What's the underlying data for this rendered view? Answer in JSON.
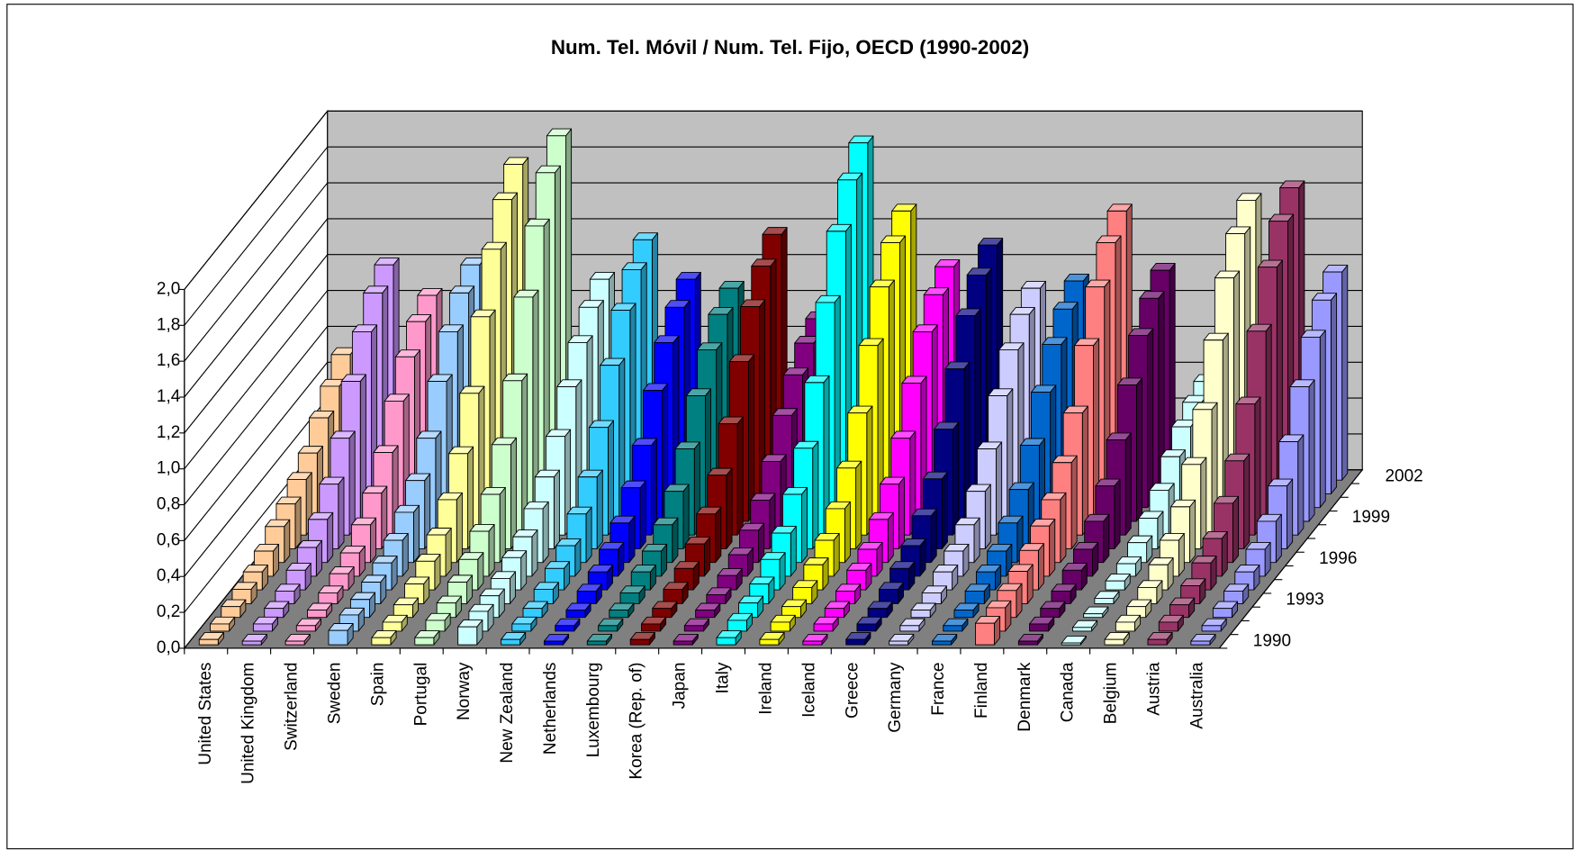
{
  "chart_data": {
    "type": "bar3d",
    "title": "Num. Tel. Móvil / Num. Tel. Fijo, OECD (1990-2002)",
    "ylim": [
      0,
      2
    ],
    "yticks": [
      {
        "value": 0,
        "label": "0,0"
      },
      {
        "value": 0.2,
        "label": "0,2"
      },
      {
        "value": 0.4,
        "label": "0,4"
      },
      {
        "value": 0.6,
        "label": "0,6"
      },
      {
        "value": 0.8,
        "label": "0,8"
      },
      {
        "value": 1,
        "label": "1,0"
      },
      {
        "value": 1.2,
        "label": "1,2"
      },
      {
        "value": 1.4,
        "label": "1,4"
      },
      {
        "value": 1.6,
        "label": "1,6"
      },
      {
        "value": 1.8,
        "label": "1,8"
      },
      {
        "value": 2,
        "label": "2,0"
      }
    ],
    "depth_categories": [
      "1990",
      null,
      null,
      "1993",
      null,
      null,
      "1996",
      null,
      null,
      "1999",
      null,
      null,
      "2002"
    ],
    "grid": true,
    "series": [
      {
        "name": "United States",
        "color": "#ffcc99",
        "values": [
          0.03,
          0.04,
          0.06,
          0.08,
          0.1,
          0.14,
          0.2,
          0.25,
          0.31,
          0.38,
          0.5,
          0.6,
          0.7
        ]
      },
      {
        "name": "United Kingdom",
        "color": "#cc99ff",
        "values": [
          0.02,
          0.04,
          0.05,
          0.07,
          0.11,
          0.16,
          0.24,
          0.36,
          0.54,
          0.78,
          0.98,
          1.12,
          1.2
        ]
      },
      {
        "name": "Switzerland",
        "color": "#ff99cc",
        "values": [
          0.02,
          0.03,
          0.04,
          0.06,
          0.09,
          0.13,
          0.21,
          0.31,
          0.46,
          0.67,
          0.84,
          0.96,
          1.03
        ]
      },
      {
        "name": "Sweden",
        "color": "#99ccff",
        "values": [
          0.08,
          0.09,
          0.1,
          0.12,
          0.15,
          0.2,
          0.28,
          0.38,
          0.54,
          0.78,
          0.98,
          1.12,
          1.2
        ]
      },
      {
        "name": "Spain",
        "color": "#ffff99",
        "values": [
          0.04,
          0.05,
          0.07,
          0.11,
          0.16,
          0.23,
          0.35,
          0.53,
          0.79,
          1.14,
          1.44,
          1.64,
          1.76
        ]
      },
      {
        "name": "Portugal",
        "color": "#ccffcc",
        "values": [
          0.04,
          0.06,
          0.08,
          0.12,
          0.17,
          0.25,
          0.38,
          0.58,
          0.86,
          1.25,
          1.57,
          1.79,
          1.92
        ]
      },
      {
        "name": "Norway",
        "color": "#ccffff",
        "values": [
          0.1,
          0.11,
          0.12,
          0.14,
          0.18,
          0.22,
          0.3,
          0.4,
          0.55,
          0.75,
          0.92,
          1.04,
          1.12
        ]
      },
      {
        "name": "New Zealand",
        "color": "#33ccff",
        "values": [
          0.03,
          0.04,
          0.05,
          0.08,
          0.12,
          0.17,
          0.27,
          0.4,
          0.6,
          0.87,
          1.1,
          1.25,
          1.34
        ]
      },
      {
        "name": "Netherlands",
        "color": "#0000ff",
        "values": [
          0.02,
          0.03,
          0.04,
          0.07,
          0.1,
          0.15,
          0.22,
          0.34,
          0.5,
          0.73,
          0.92,
          1.04,
          1.12
        ]
      },
      {
        "name": "Luxembourg",
        "color": "#008080",
        "values": [
          0.02,
          0.03,
          0.04,
          0.06,
          0.1,
          0.14,
          0.21,
          0.32,
          0.48,
          0.7,
          0.88,
          1.0,
          1.07
        ]
      },
      {
        "name": "Korea (Rep. of)",
        "color": "#800000",
        "values": [
          0.03,
          0.04,
          0.05,
          0.08,
          0.12,
          0.18,
          0.27,
          0.41,
          0.62,
          0.89,
          1.12,
          1.27,
          1.37
        ]
      },
      {
        "name": "Japan",
        "color": "#800080",
        "values": [
          0.02,
          0.03,
          0.04,
          0.05,
          0.08,
          0.12,
          0.18,
          0.27,
          0.41,
          0.59,
          0.74,
          0.84,
          0.9
        ]
      },
      {
        "name": "Italy",
        "color": "#00ffff",
        "values": [
          0.04,
          0.06,
          0.08,
          0.11,
          0.17,
          0.24,
          0.38,
          0.56,
          0.85,
          1.22,
          1.54,
          1.75,
          1.88
        ]
      },
      {
        "name": "Ireland",
        "color": "#ffff00",
        "values": [
          0.03,
          0.05,
          0.06,
          0.09,
          0.14,
          0.2,
          0.3,
          0.45,
          0.68,
          0.98,
          1.23,
          1.4,
          1.5
        ]
      },
      {
        "name": "Iceland",
        "color": "#ff00ff",
        "values": [
          0.02,
          0.04,
          0.05,
          0.07,
          0.11,
          0.15,
          0.24,
          0.36,
          0.54,
          0.77,
          0.98,
          1.11,
          1.19
        ]
      },
      {
        "name": "Greece",
        "color": "#000080",
        "values": [
          0.03,
          0.04,
          0.05,
          0.08,
          0.12,
          0.17,
          0.26,
          0.39,
          0.59,
          0.85,
          1.07,
          1.22,
          1.31
        ]
      },
      {
        "name": "Germany",
        "color": "#ccccff",
        "values": [
          0.02,
          0.03,
          0.04,
          0.06,
          0.1,
          0.14,
          0.21,
          0.32,
          0.48,
          0.7,
          0.88,
          1.0,
          1.07
        ]
      },
      {
        "name": "France",
        "color": "#0066cc",
        "values": [
          0.02,
          0.03,
          0.04,
          0.07,
          0.1,
          0.14,
          0.22,
          0.33,
          0.5,
          0.72,
          0.91,
          1.03,
          1.11
        ]
      },
      {
        "name": "Finland",
        "color": "#ff8080",
        "values": [
          0.12,
          0.13,
          0.15,
          0.18,
          0.22,
          0.28,
          0.35,
          0.48,
          0.68,
          0.98,
          1.23,
          1.4,
          1.5
        ]
      },
      {
        "name": "Denmark",
        "color": "#660066",
        "values": [
          0.02,
          0.04,
          0.05,
          0.07,
          0.11,
          0.15,
          0.23,
          0.35,
          0.53,
          0.76,
          0.96,
          1.09,
          1.17
        ]
      },
      {
        "name": "Canada",
        "color": "#ccffff",
        "values": [
          0.01,
          0.02,
          0.02,
          0.03,
          0.05,
          0.07,
          0.11,
          0.17,
          0.25,
          0.36,
          0.45,
          0.51,
          0.55
        ]
      },
      {
        "name": "Belgium",
        "color": "#ffffcc",
        "values": [
          0.03,
          0.05,
          0.06,
          0.09,
          0.14,
          0.2,
          0.31,
          0.47,
          0.7,
          1.01,
          1.28,
          1.45,
          1.56
        ]
      },
      {
        "name": "Austria",
        "color": "#993366",
        "values": [
          0.03,
          0.05,
          0.07,
          0.1,
          0.15,
          0.21,
          0.33,
          0.49,
          0.73,
          1.06,
          1.34,
          1.52,
          1.63
        ]
      },
      {
        "name": "Australia",
        "color": "#9999ff",
        "values": [
          0.02,
          0.03,
          0.05,
          0.07,
          0.1,
          0.15,
          0.23,
          0.35,
          0.52,
          0.75,
          0.95,
          1.08,
          1.16
        ]
      }
    ]
  }
}
